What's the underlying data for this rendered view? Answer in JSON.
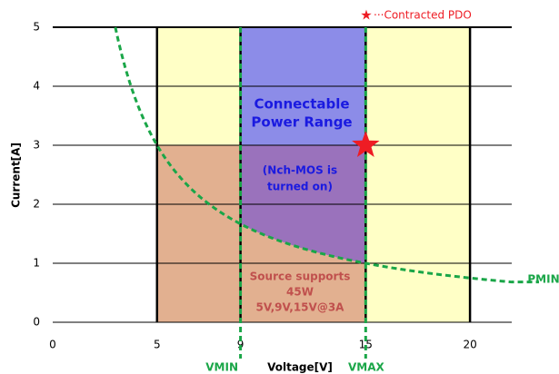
{
  "chart_data": {
    "type": "power-range",
    "xlabel": "Voltage[V]",
    "ylabel": "Current[A]",
    "xlim": [
      0,
      22
    ],
    "ylim": [
      0,
      5
    ],
    "xticks": [
      0,
      5,
      9,
      15,
      20
    ],
    "yticks": [
      0,
      1,
      2,
      3,
      4,
      5
    ],
    "grid": true,
    "regions": [
      {
        "x": [
          5,
          20
        ],
        "y": [
          0,
          5
        ],
        "color": "#ffffc6"
      },
      {
        "x": [
          5,
          15
        ],
        "y": [
          0,
          3
        ],
        "color": "#e2b090"
      },
      {
        "x": [
          9,
          15
        ],
        "y": [
          3,
          5
        ],
        "color": "#8c8ce8"
      }
    ],
    "on_region_color": "#9a72bc",
    "pmin": 15,
    "pmin_start": 3,
    "vmin": 9,
    "vmax": 15,
    "guide_color": "#1aa648",
    "contracted_pdo": [
      15,
      3
    ],
    "pdo_color": "#ee1c24",
    "labels": {
      "connectable": [
        "Connectable",
        "Power Range"
      ],
      "nch": [
        "(Nch-MOS is",
        "turned on)"
      ],
      "source": [
        "Source supports",
        "45W",
        "5V,9V,15V@3A"
      ],
      "pmin": "PMIN",
      "vmin": "VMIN",
      "vmax": "VMAX",
      "legend_star": "★",
      "legend": "···Contracted PDO"
    }
  }
}
